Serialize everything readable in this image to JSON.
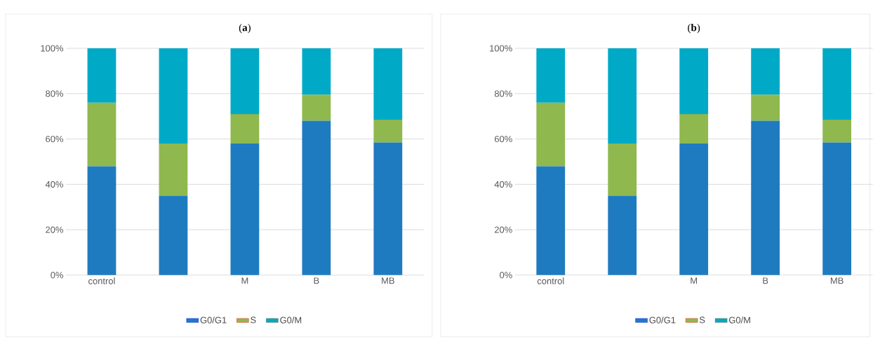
{
  "chart_data": [
    {
      "type": "bar",
      "title": "(**a**)",
      "stacked": true,
      "categories": [
        "control",
        null,
        "M",
        "B",
        "MB"
      ],
      "series": [
        {
          "name": "G0/G1",
          "color": "#1f7bbf",
          "values": [
            48,
            35,
            58,
            68,
            58.5
          ]
        },
        {
          "name": "S",
          "color": "#8fb84e",
          "values": [
            28,
            23,
            13,
            11.5,
            10
          ]
        },
        {
          "name": "G0/M",
          "color": "#00aac6",
          "values": [
            24,
            42,
            29,
            20.5,
            31.5
          ]
        }
      ],
      "ylim": [
        0,
        100
      ],
      "yticks": [
        {
          "value": 0,
          "label": "0%"
        },
        {
          "value": 20,
          "label": "20%"
        },
        {
          "value": 40,
          "label": "40%"
        },
        {
          "value": 60,
          "label": "60%"
        },
        {
          "value": 80,
          "label": "80%"
        },
        {
          "value": 100,
          "label": "100%"
        }
      ],
      "grid": "y",
      "legend": "bottom"
    },
    {
      "type": "bar",
      "title": "(**b**)",
      "stacked": true,
      "categories": [
        "control",
        null,
        "M",
        "B",
        "MB"
      ],
      "series": [
        {
          "name": "G0/G1",
          "color": "#1f7bbf",
          "values": [
            48,
            35,
            58,
            68,
            58.5
          ]
        },
        {
          "name": "S",
          "color": "#8fb84e",
          "values": [
            28,
            23,
            13,
            11.5,
            10
          ]
        },
        {
          "name": "G0/M",
          "color": "#00aac6",
          "values": [
            24,
            42,
            29,
            20.5,
            31.5
          ]
        }
      ],
      "ylim": [
        0,
        100
      ],
      "yticks": [
        {
          "value": 0,
          "label": "0%"
        },
        {
          "value": 20,
          "label": "20%"
        },
        {
          "value": 40,
          "label": "40%"
        },
        {
          "value": 60,
          "label": "60%"
        },
        {
          "value": 80,
          "label": "80%"
        },
        {
          "value": 100,
          "label": "100%"
        }
      ],
      "grid": "y",
      "legend": "bottom"
    }
  ]
}
